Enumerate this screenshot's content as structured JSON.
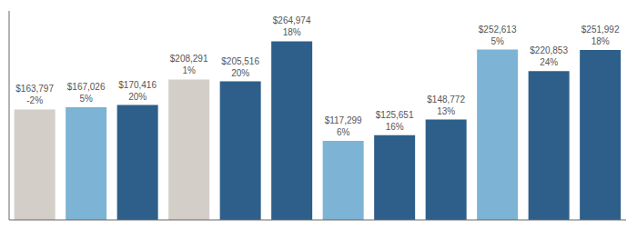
{
  "chart_data": {
    "type": "bar",
    "categories": [
      null,
      null,
      null,
      null,
      null,
      null,
      null,
      null,
      null,
      null,
      null,
      null
    ],
    "values": [
      163797,
      167026,
      170416,
      208291,
      205516,
      264974,
      117299,
      125651,
      148772,
      252613,
      220853,
      251992
    ],
    "colors": [
      "#d3cfc8",
      "#7db3d4",
      "#2e5f8a",
      "#d3cfc8",
      "#2e5f8a",
      "#2e5f8a",
      "#7db3d4",
      "#2e5f8a",
      "#2e5f8a",
      "#7db3d4",
      "#2e5f8a",
      "#2e5f8a"
    ],
    "value_labels": [
      "$163,797",
      "$167,026",
      "$170,416",
      "$208,291",
      "$205,516",
      "$264,974",
      "$117,299",
      "$125,651",
      "$148,772",
      "$252,613",
      "$220,853",
      "$251,992"
    ],
    "pct_labels": [
      "-2%",
      "5%",
      "20%",
      "1%",
      "20%",
      "18%",
      "6%",
      "16%",
      "13%",
      "5%",
      "24%",
      "18%"
    ],
    "ylim": [
      0,
      310000
    ],
    "data_labels": true,
    "tick_labels": false,
    "grid": false
  }
}
